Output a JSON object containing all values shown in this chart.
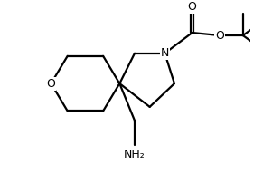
{
  "background_color": "#ffffff",
  "line_color": "#000000",
  "line_width": 1.6,
  "figsize": [
    2.91,
    1.93
  ],
  "dpi": 100,
  "sx": 4.5,
  "sy": 3.8,
  "xlim": [
    0,
    10
  ],
  "ylim": [
    0,
    7
  ]
}
